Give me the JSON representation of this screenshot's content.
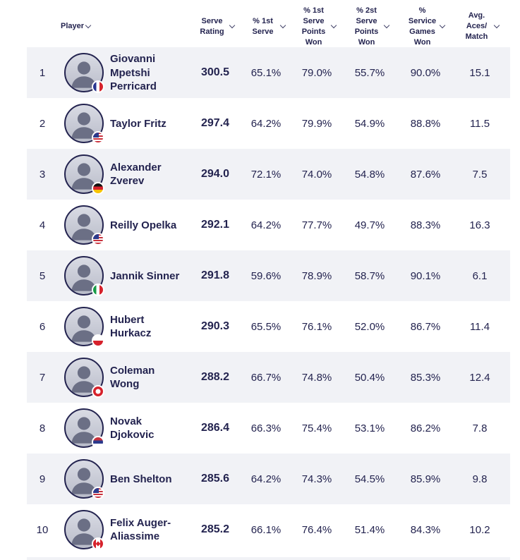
{
  "colors": {
    "text_navy": "#23234f",
    "row_alt_background": "#f1f2f6",
    "background": "#ffffff"
  },
  "table": {
    "columns": [
      {
        "key": "player",
        "label": "Player",
        "sortable": true
      },
      {
        "key": "serve-rating",
        "label": "Serve Rating",
        "sortable": true
      },
      {
        "key": "first-serve-pct",
        "label": "% 1st Serve",
        "sortable": true
      },
      {
        "key": "first-serve-points-won",
        "label": "% 1st Serve Points Won",
        "sortable": true
      },
      {
        "key": "second-serve-points-won",
        "label": "% 2st Serve Points Won",
        "sortable": true
      },
      {
        "key": "service-games-won",
        "label": "% Service Games Won",
        "sortable": true
      },
      {
        "key": "avg-aces-per-match",
        "label": "Avg. Aces/ Match",
        "sortable": true
      }
    ],
    "rows": [
      {
        "rank": "1",
        "name": "Giovanni Mpetshi Perricard",
        "country": "France",
        "flag": "fr",
        "serve_rating": "300.5",
        "first_serve": "65.1%",
        "first_serve_points_won": "79.0%",
        "second_serve_points_won": "55.7%",
        "service_games_won": "90.0%",
        "avg_aces": "15.1"
      },
      {
        "rank": "2",
        "name": "Taylor Fritz",
        "country": "United States",
        "flag": "us",
        "serve_rating": "297.4",
        "first_serve": "64.2%",
        "first_serve_points_won": "79.9%",
        "second_serve_points_won": "54.9%",
        "service_games_won": "88.8%",
        "avg_aces": "11.5"
      },
      {
        "rank": "3",
        "name": "Alexander Zverev",
        "country": "Germany",
        "flag": "de",
        "serve_rating": "294.0",
        "first_serve": "72.1%",
        "first_serve_points_won": "74.0%",
        "second_serve_points_won": "54.8%",
        "service_games_won": "87.6%",
        "avg_aces": "7.5"
      },
      {
        "rank": "4",
        "name": "Reilly Opelka",
        "country": "United States",
        "flag": "us",
        "serve_rating": "292.1",
        "first_serve": "64.2%",
        "first_serve_points_won": "77.7%",
        "second_serve_points_won": "49.7%",
        "service_games_won": "88.3%",
        "avg_aces": "16.3"
      },
      {
        "rank": "5",
        "name": "Jannik Sinner",
        "country": "Italy",
        "flag": "it",
        "serve_rating": "291.8",
        "first_serve": "59.6%",
        "first_serve_points_won": "78.9%",
        "second_serve_points_won": "58.7%",
        "service_games_won": "90.1%",
        "avg_aces": "6.1"
      },
      {
        "rank": "6",
        "name": "Hubert Hurkacz",
        "country": "Poland",
        "flag": "pl",
        "serve_rating": "290.3",
        "first_serve": "65.5%",
        "first_serve_points_won": "76.1%",
        "second_serve_points_won": "52.0%",
        "service_games_won": "86.7%",
        "avg_aces": "11.4"
      },
      {
        "rank": "7",
        "name": "Coleman Wong",
        "country": "Hong Kong",
        "flag": "hk",
        "serve_rating": "288.2",
        "first_serve": "66.7%",
        "first_serve_points_won": "74.8%",
        "second_serve_points_won": "50.4%",
        "service_games_won": "85.3%",
        "avg_aces": "12.4"
      },
      {
        "rank": "8",
        "name": "Novak Djokovic",
        "country": "Serbia",
        "flag": "rs",
        "serve_rating": "286.4",
        "first_serve": "66.3%",
        "first_serve_points_won": "75.4%",
        "second_serve_points_won": "53.1%",
        "service_games_won": "86.2%",
        "avg_aces": "7.8"
      },
      {
        "rank": "9",
        "name": "Ben Shelton",
        "country": "United States",
        "flag": "us",
        "serve_rating": "285.6",
        "first_serve": "64.2%",
        "first_serve_points_won": "74.3%",
        "second_serve_points_won": "54.5%",
        "service_games_won": "85.9%",
        "avg_aces": "9.8"
      },
      {
        "rank": "10",
        "name": "Felix Auger-Aliassime",
        "country": "Canada",
        "flag": "ca",
        "serve_rating": "285.2",
        "first_serve": "66.1%",
        "first_serve_points_won": "76.4%",
        "second_serve_points_won": "51.4%",
        "service_games_won": "84.3%",
        "avg_aces": "10.2"
      }
    ]
  }
}
